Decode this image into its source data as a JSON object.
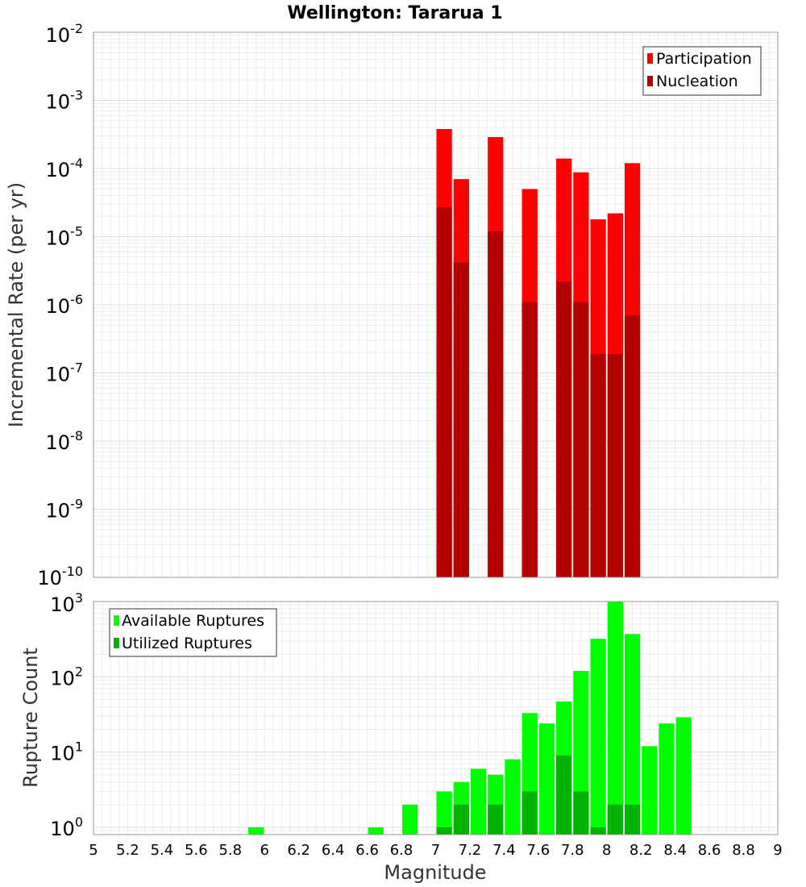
{
  "chart_data": [
    {
      "type": "bar",
      "title": "Wellington: Tararua 1",
      "xlabel": "",
      "ylabel": "Incremental Rate (per yr)",
      "y_scale": "log",
      "xlim": [
        5,
        9
      ],
      "ylim": [
        1e-10,
        0.01
      ],
      "y_tick_exponents": [
        -10,
        -9,
        -8,
        -7,
        -6,
        -5,
        -4,
        -3,
        -2
      ],
      "grid": true,
      "legend_position": "top-right",
      "bar_width": 0.1,
      "x": [
        7.05,
        7.15,
        7.35,
        7.55,
        7.75,
        7.85,
        7.95,
        8.05,
        8.15
      ],
      "series": [
        {
          "name": "Participation",
          "color": "#ff0000",
          "values": [
            0.00038,
            7e-05,
            0.00029,
            5e-05,
            0.00014,
            8.8e-05,
            1.8e-05,
            2.2e-05,
            0.00012
          ]
        },
        {
          "name": "Nucleation",
          "color": "#b30000",
          "values": [
            2.7e-05,
            4.2e-06,
            1.2e-05,
            1.1e-06,
            2.2e-06,
            1.1e-06,
            1.9e-07,
            1.9e-07,
            7e-07
          ]
        }
      ]
    },
    {
      "type": "bar",
      "xlabel": "Magnitude",
      "ylabel": "Rupture Count",
      "y_scale": "log",
      "xlim": [
        5,
        9
      ],
      "ylim": [
        0.8,
        1000
      ],
      "y_tick_exponents": [
        0,
        1,
        2,
        3
      ],
      "x_ticks": [
        "5",
        "5.2",
        "5.4",
        "5.6",
        "5.8",
        "6",
        "6.2",
        "6.4",
        "6.6",
        "6.8",
        "7",
        "7.2",
        "7.4",
        "7.6",
        "7.8",
        "8",
        "8.2",
        "8.4",
        "8.6",
        "8.8",
        "9"
      ],
      "grid": true,
      "legend_position": "top-left",
      "bar_width": 0.1,
      "series": [
        {
          "name": "Available Ruptures",
          "color": "#00ff00",
          "x": [
            5.95,
            6.65,
            6.85,
            7.05,
            7.15,
            7.25,
            7.35,
            7.45,
            7.55,
            7.65,
            7.75,
            7.85,
            7.95,
            8.05,
            8.15,
            8.25,
            8.35,
            8.45
          ],
          "values": [
            1,
            1,
            2,
            3,
            4,
            6,
            5,
            8,
            33,
            24,
            47,
            120,
            320,
            1000,
            370,
            12,
            24,
            29
          ]
        },
        {
          "name": "Utilized Ruptures",
          "color": "#00b300",
          "x": [
            7.05,
            7.15,
            7.35,
            7.55,
            7.75,
            7.85,
            7.95,
            8.05,
            8.15
          ],
          "values": [
            1,
            2,
            2,
            3,
            9,
            3,
            1,
            2,
            2
          ]
        }
      ]
    }
  ]
}
